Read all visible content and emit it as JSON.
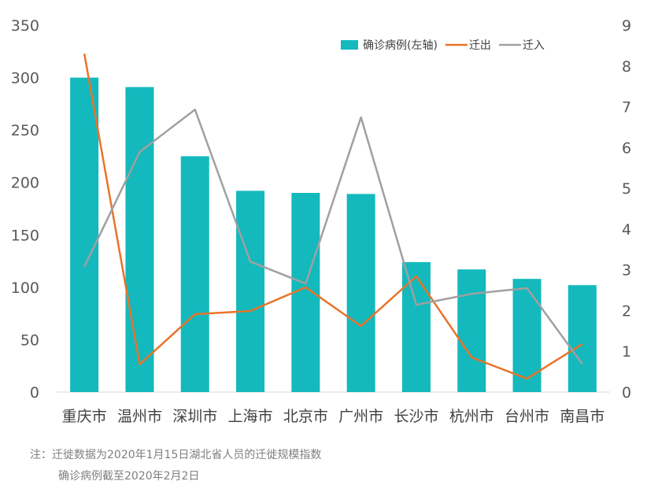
{
  "chart_data": {
    "type": "bar+line",
    "categories": [
      "重庆市",
      "温州市",
      "深圳市",
      "上海市",
      "北京市",
      "广州市",
      "长沙市",
      "杭州市",
      "台州市",
      "南昌市"
    ],
    "series": [
      {
        "name": "确诊病例(左轴)",
        "type": "bar",
        "axis": "left",
        "color": "#13B9BD",
        "values": [
          300,
          291,
          225,
          192,
          190,
          189,
          124,
          117,
          108,
          102
        ]
      },
      {
        "name": "迁出",
        "type": "line",
        "axis": "right",
        "color": "#E8742A",
        "values": [
          8.3,
          0.68,
          1.91,
          1.99,
          2.57,
          1.62,
          2.84,
          0.85,
          0.33,
          1.18
        ]
      },
      {
        "name": "迁入",
        "type": "line",
        "axis": "right",
        "color": "#A0A0A0",
        "values": [
          3.07,
          5.89,
          6.93,
          3.2,
          2.66,
          6.74,
          2.14,
          2.41,
          2.55,
          0.69
        ]
      }
    ],
    "ylim_left": [
      0,
      350
    ],
    "yticks_left": [
      0,
      50,
      100,
      150,
      200,
      250,
      300,
      350
    ],
    "ylim_right": [
      0,
      9
    ],
    "yticks_right": [
      0,
      1,
      2,
      3,
      4,
      5,
      6,
      7,
      8,
      9
    ],
    "grid": false,
    "legend_placement": "top-right"
  },
  "notes": {
    "line1": "注：迁徙数据为2020年1月15日湖北省人员的迁徙规模指数",
    "line2": "确诊病例截至2020年2月2日"
  }
}
